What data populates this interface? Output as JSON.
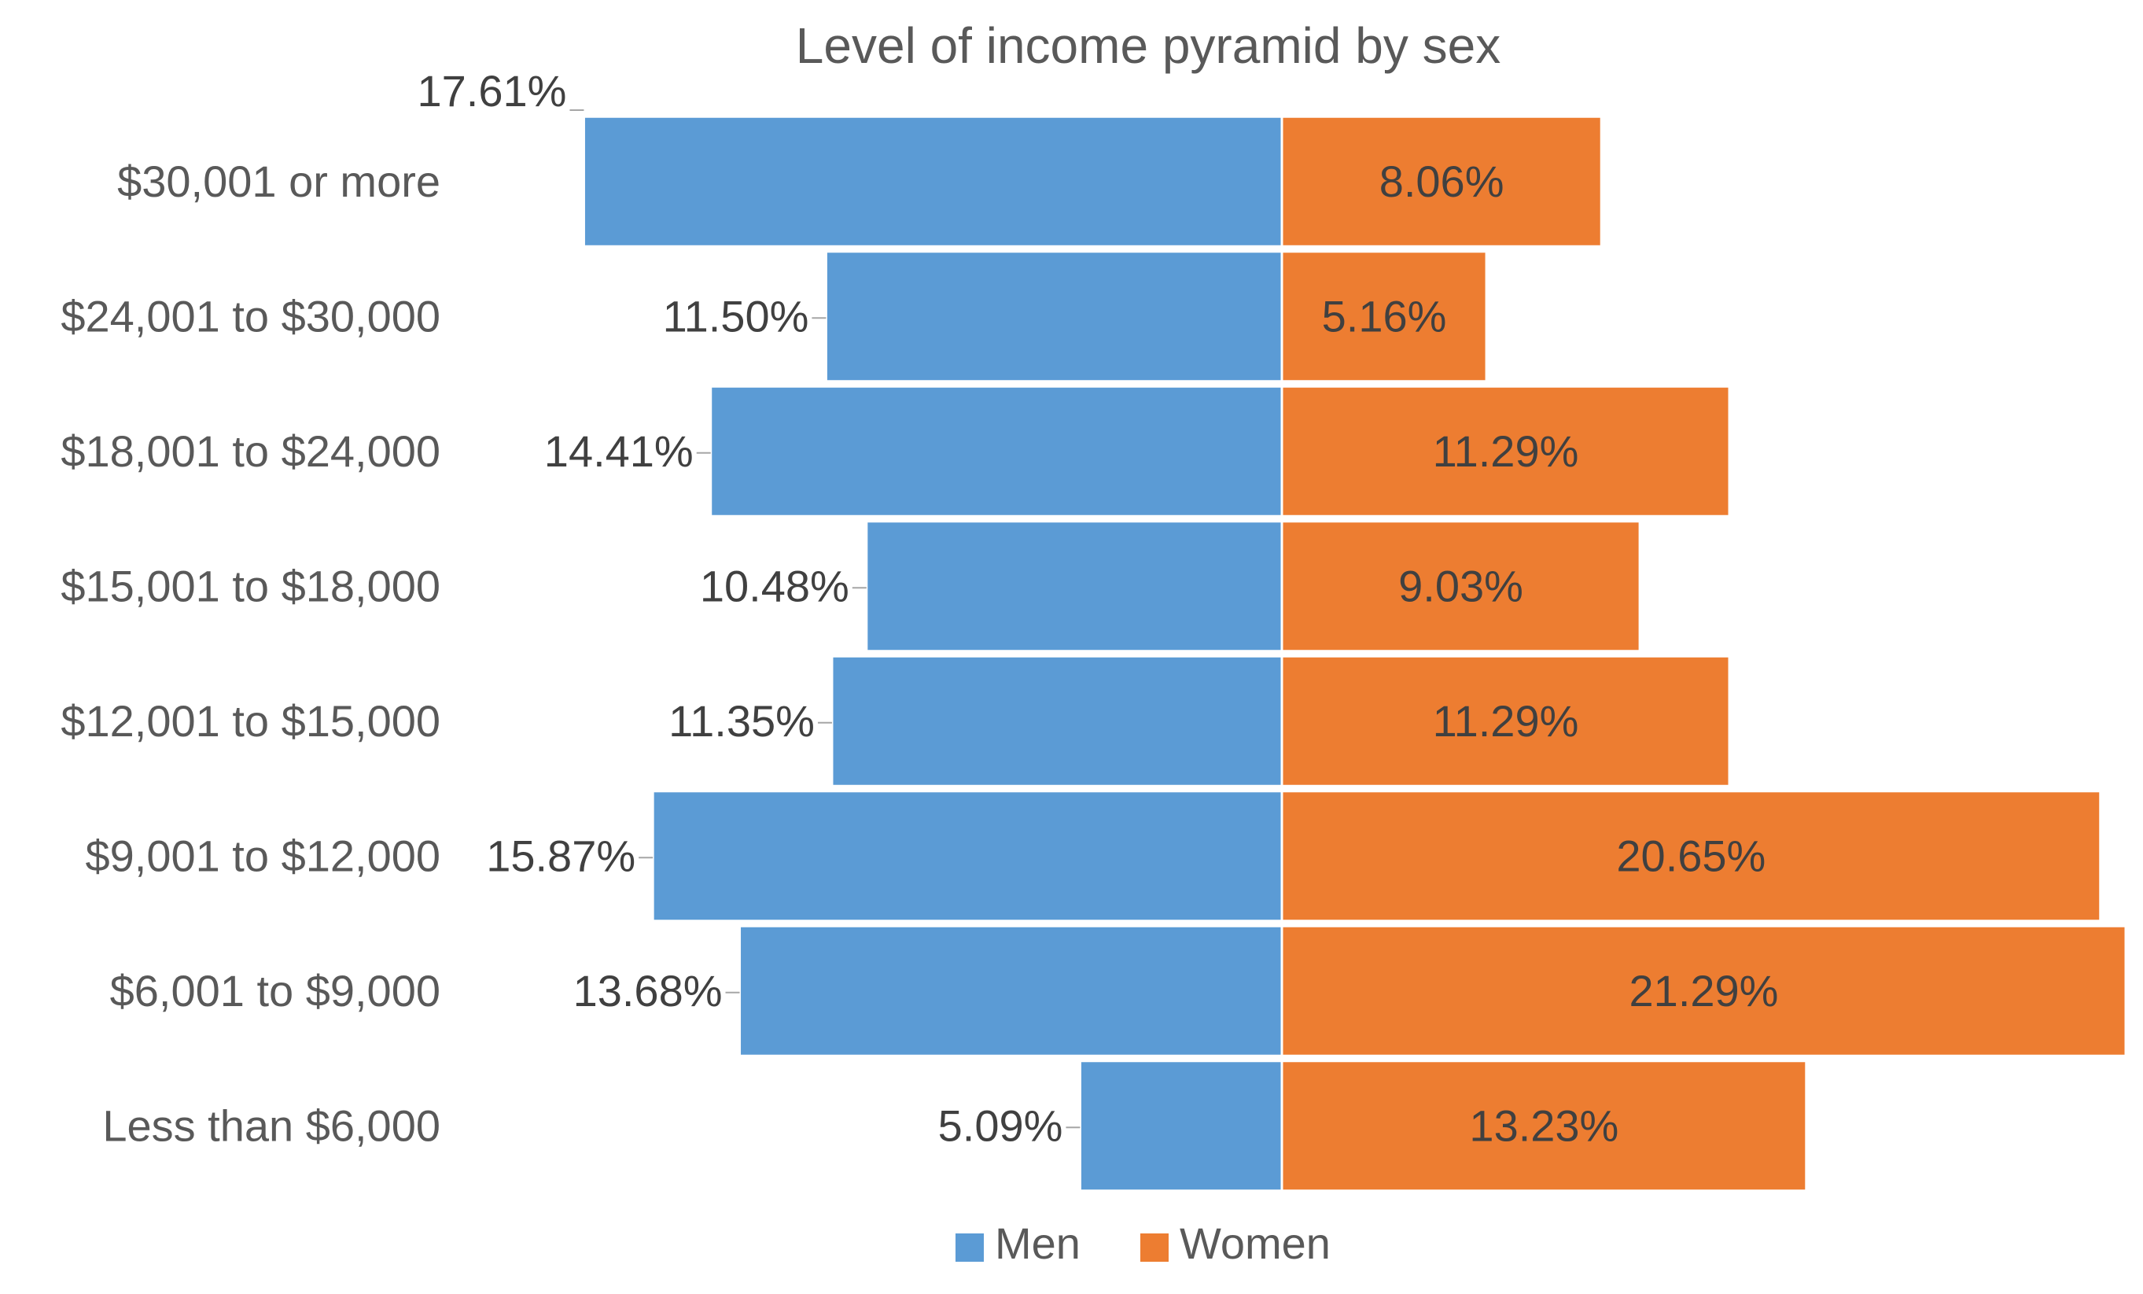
{
  "chart_data": {
    "type": "bar",
    "orientation": "horizontal-diverging",
    "title": "Level of income pyramid by sex",
    "categories": [
      "$30,001 or more",
      "$24,001 to $30,000",
      "$18,001 to $24,000",
      "$15,001 to $18,000",
      "$12,001 to $15,000",
      "$9,001 to $12,000",
      "$6,001 to $9,000",
      "Less than $6,000"
    ],
    "series": [
      {
        "name": "Men",
        "color": "#5b9bd5",
        "side": "left",
        "values": [
          17.61,
          11.5,
          14.41,
          10.48,
          11.35,
          15.87,
          13.68,
          5.09
        ],
        "labels": [
          "17.61%",
          "11.50%",
          "14.41%",
          "10.48%",
          "11.35%",
          "15.87%",
          "13.68%",
          "5.09%"
        ]
      },
      {
        "name": "Women",
        "color": "#ed7d31",
        "side": "right",
        "values": [
          8.06,
          5.16,
          11.29,
          9.03,
          11.29,
          20.65,
          21.29,
          13.23
        ],
        "labels": [
          "8.06%",
          "5.16%",
          "11.29%",
          "9.03%",
          "11.29%",
          "20.65%",
          "21.29%",
          "13.23%"
        ]
      }
    ],
    "xlim": [
      -17.61,
      21.29
    ],
    "xlabel": "",
    "ylabel": "",
    "grid": false,
    "legend": "bottom"
  }
}
